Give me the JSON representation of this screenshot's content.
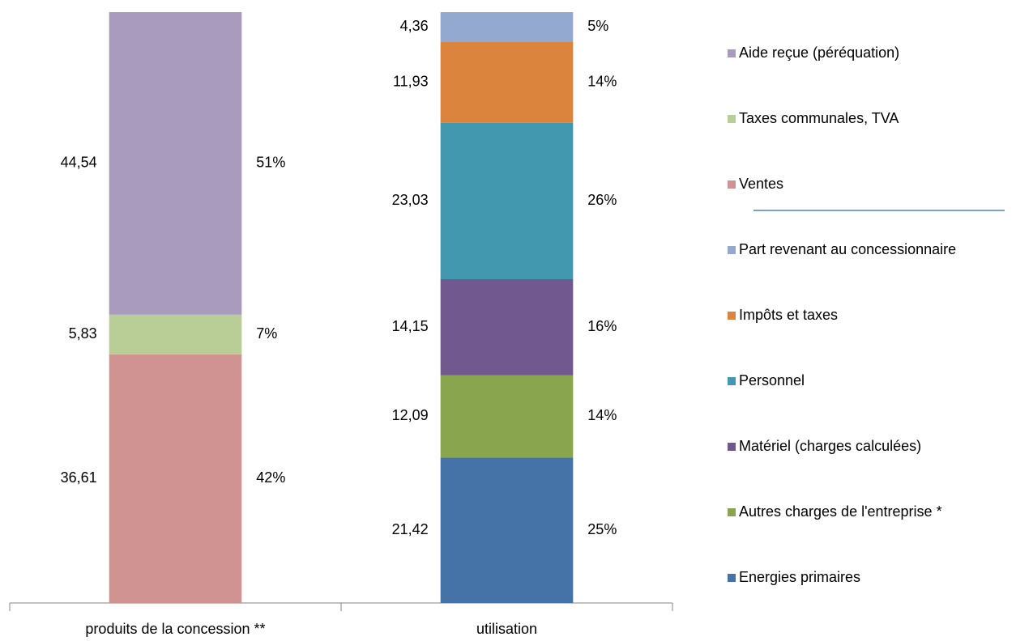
{
  "chart_data": {
    "type": "stacked_bar",
    "categories": [
      "produits de la concession **",
      "utilisation"
    ],
    "ylim": [
      0,
      86.98
    ],
    "series": [
      {
        "name": "Energies primaires",
        "color": "#4572a7",
        "values": [
          null,
          21.42
        ],
        "value_labels": [
          null,
          "21,42"
        ],
        "percent_labels": [
          null,
          "25%"
        ]
      },
      {
        "name": "Autres charges de l'entreprise *",
        "color": "#89a54e",
        "values": [
          null,
          12.09
        ],
        "value_labels": [
          null,
          "12,09"
        ],
        "percent_labels": [
          null,
          "14%"
        ]
      },
      {
        "name": "Matériel (charges calculées)",
        "color": "#71588f",
        "values": [
          null,
          14.15
        ],
        "value_labels": [
          null,
          "14,15"
        ],
        "percent_labels": [
          null,
          "16%"
        ]
      },
      {
        "name": "Personnel",
        "color": "#4198af",
        "values": [
          null,
          23.03
        ],
        "value_labels": [
          null,
          "23,03"
        ],
        "percent_labels": [
          null,
          "26%"
        ]
      },
      {
        "name": "Impôts et taxes",
        "color": "#db843d",
        "values": [
          null,
          11.93
        ],
        "value_labels": [
          null,
          "11,93"
        ],
        "percent_labels": [
          null,
          "14%"
        ]
      },
      {
        "name": "Part revenant au concessionnaire",
        "color": "#93a9cf",
        "values": [
          null,
          4.36
        ],
        "value_labels": [
          null,
          "4,36"
        ],
        "percent_labels": [
          null,
          "5%"
        ]
      },
      {
        "name": "Ventes",
        "color": "#d19392",
        "values": [
          36.61,
          null
        ],
        "value_labels": [
          "36,61",
          null
        ],
        "percent_labels": [
          "42%",
          null
        ]
      },
      {
        "name": "Taxes communales, TVA",
        "color": "#b9cd96",
        "values": [
          5.83,
          null
        ],
        "value_labels": [
          "5,83",
          null
        ],
        "percent_labels": [
          "7%",
          null
        ]
      },
      {
        "name": "Aide reçue (péréquation)",
        "color": "#a99bbd",
        "values": [
          44.54,
          null
        ],
        "value_labels": [
          "44,54",
          null
        ],
        "percent_labels": [
          "51%",
          null
        ]
      }
    ]
  }
}
